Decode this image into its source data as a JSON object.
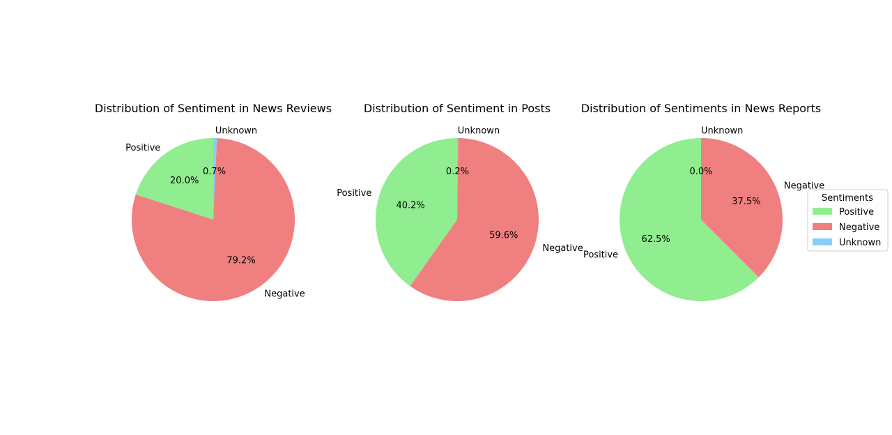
{
  "chart_data": [
    {
      "type": "pie",
      "title": "Distribution of Sentiment in News Reviews",
      "categories": [
        "Positive",
        "Negative",
        "Unknown"
      ],
      "values": [
        20.0,
        79.2,
        0.7
      ],
      "percent_labels": [
        "20.0%",
        "79.2%",
        "0.7%"
      ],
      "colors": [
        "#90ee90",
        "#f08080",
        "#87cefa"
      ],
      "start_angle_deg": 90,
      "direction": "counterclockwise"
    },
    {
      "type": "pie",
      "title": "Distribution of Sentiment in Posts",
      "categories": [
        "Positive",
        "Negative",
        "Unknown"
      ],
      "values": [
        40.2,
        59.6,
        0.2
      ],
      "percent_labels": [
        "40.2%",
        "59.6%",
        "0.2%"
      ],
      "colors": [
        "#90ee90",
        "#f08080",
        "#87cefa"
      ],
      "start_angle_deg": 90,
      "direction": "counterclockwise"
    },
    {
      "type": "pie",
      "title": "Distribution of Sentiments in News Reports",
      "categories": [
        "Positive",
        "Negative",
        "Unknown"
      ],
      "values": [
        62.5,
        37.5,
        0.0
      ],
      "percent_labels": [
        "62.5%",
        "37.5%",
        "0.0%"
      ],
      "colors": [
        "#90ee90",
        "#f08080",
        "#87cefa"
      ],
      "start_angle_deg": 90,
      "direction": "counterclockwise"
    }
  ],
  "legend": {
    "title": "Sentiments",
    "placement": "right",
    "entries": [
      {
        "label": "Positive",
        "color": "#90ee90"
      },
      {
        "label": "Negative",
        "color": "#f08080"
      },
      {
        "label": "Unknown",
        "color": "#87cefa"
      }
    ]
  }
}
